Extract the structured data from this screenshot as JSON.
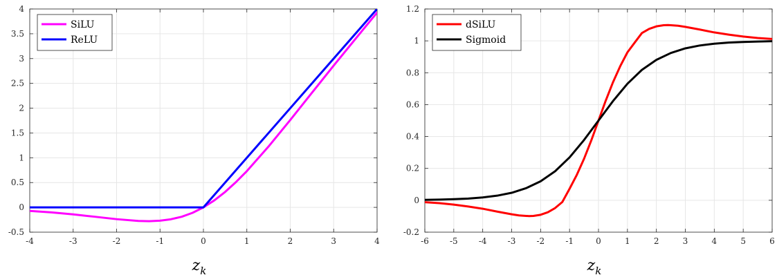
{
  "chart_data": [
    {
      "type": "line",
      "title": "",
      "xlabel": "z",
      "xlabel_subscript": "k",
      "ylabel": "",
      "xlim": [
        -4,
        4
      ],
      "ylim": [
        -0.5,
        4
      ],
      "grid": true,
      "legend_position": "top-left",
      "xticks": [
        -4,
        -3,
        -2,
        -1,
        0,
        1,
        2,
        3,
        4
      ],
      "xtick_labels": [
        "-4",
        "-3",
        "-2",
        "-1",
        "0",
        "1",
        "2",
        "3",
        "4"
      ],
      "yticks": [
        -0.5,
        0,
        0.5,
        1,
        1.5,
        2,
        2.5,
        3,
        3.5,
        4
      ],
      "ytick_labels": [
        "-0.5",
        "0",
        "0.5",
        "1",
        "1.5",
        "2",
        "2.5",
        "3",
        "3.5",
        "4"
      ],
      "series": [
        {
          "name": "SiLU",
          "color": "#ff00ff",
          "x": [
            -4,
            -3.5,
            -3,
            -2.5,
            -2,
            -1.5,
            -1.25,
            -1,
            -0.75,
            -0.5,
            -0.25,
            0,
            0.25,
            0.5,
            0.75,
            1,
            1.5,
            2,
            2.5,
            3,
            3.5,
            4
          ],
          "y": [
            -0.072,
            -0.102,
            -0.142,
            -0.189,
            -0.238,
            -0.274,
            -0.278,
            -0.269,
            -0.24,
            -0.189,
            -0.11,
            0,
            0.14,
            0.311,
            0.51,
            0.731,
            1.227,
            1.762,
            2.311,
            2.858,
            3.395,
            3.928
          ]
        },
        {
          "name": "ReLU",
          "color": "#0000ff",
          "x": [
            -4,
            0,
            4
          ],
          "y": [
            0,
            0,
            4
          ]
        }
      ]
    },
    {
      "type": "line",
      "title": "",
      "xlabel": "z",
      "xlabel_subscript": "k",
      "ylabel": "",
      "xlim": [
        -6,
        6
      ],
      "ylim": [
        -0.2,
        1.2
      ],
      "grid": true,
      "legend_position": "top-left",
      "xticks": [
        -6,
        -5,
        -4,
        -3,
        -2,
        -1,
        0,
        1,
        2,
        3,
        4,
        5,
        6
      ],
      "xtick_labels": [
        "-6",
        "-5",
        "-4",
        "-3",
        "-2",
        "-1",
        "0",
        "1",
        "2",
        "3",
        "4",
        "5",
        "6"
      ],
      "yticks": [
        -0.2,
        0,
        0.2,
        0.4,
        0.6,
        0.8,
        1,
        1.2
      ],
      "ytick_labels": [
        "-0.2",
        "0",
        "0.2",
        "0.4",
        "0.6",
        "0.8",
        "1",
        "1.2"
      ],
      "series": [
        {
          "name": "dSiLU",
          "color": "#ff0000",
          "x": [
            -6,
            -5.5,
            -5,
            -4.5,
            -4,
            -3.5,
            -3,
            -2.75,
            -2.5,
            -2.4,
            -2.25,
            -2,
            -1.75,
            -1.5,
            -1.25,
            -1,
            -0.75,
            -0.5,
            -0.25,
            0,
            0.25,
            0.5,
            0.75,
            1,
            1.25,
            1.5,
            1.75,
            2,
            2.25,
            2.4,
            2.5,
            2.75,
            3,
            3.5,
            4,
            4.5,
            5,
            5.5,
            6
          ],
          "y": [
            -0.012,
            -0.018,
            -0.027,
            -0.039,
            -0.053,
            -0.071,
            -0.088,
            -0.095,
            -0.098,
            -0.099,
            -0.098,
            -0.091,
            -0.075,
            -0.049,
            -0.011,
            0.072,
            0.159,
            0.26,
            0.375,
            0.5,
            0.625,
            0.74,
            0.841,
            0.928,
            0.989,
            1.049,
            1.075,
            1.091,
            1.098,
            1.099,
            1.098,
            1.095,
            1.088,
            1.071,
            1.053,
            1.039,
            1.027,
            1.018,
            1.012
          ]
        },
        {
          "name": "Sigmoid",
          "color": "#000000",
          "x": [
            -6,
            -5.5,
            -5,
            -4.5,
            -4,
            -3.5,
            -3,
            -2.5,
            -2,
            -1.5,
            -1,
            -0.5,
            0,
            0.5,
            1,
            1.5,
            2,
            2.5,
            3,
            3.5,
            4,
            4.5,
            5,
            5.5,
            6
          ],
          "y": [
            0.0025,
            0.0041,
            0.0067,
            0.011,
            0.018,
            0.029,
            0.047,
            0.076,
            0.119,
            0.182,
            0.269,
            0.378,
            0.5,
            0.622,
            0.731,
            0.818,
            0.881,
            0.924,
            0.953,
            0.971,
            0.982,
            0.989,
            0.993,
            0.996,
            0.998
          ]
        }
      ]
    }
  ]
}
